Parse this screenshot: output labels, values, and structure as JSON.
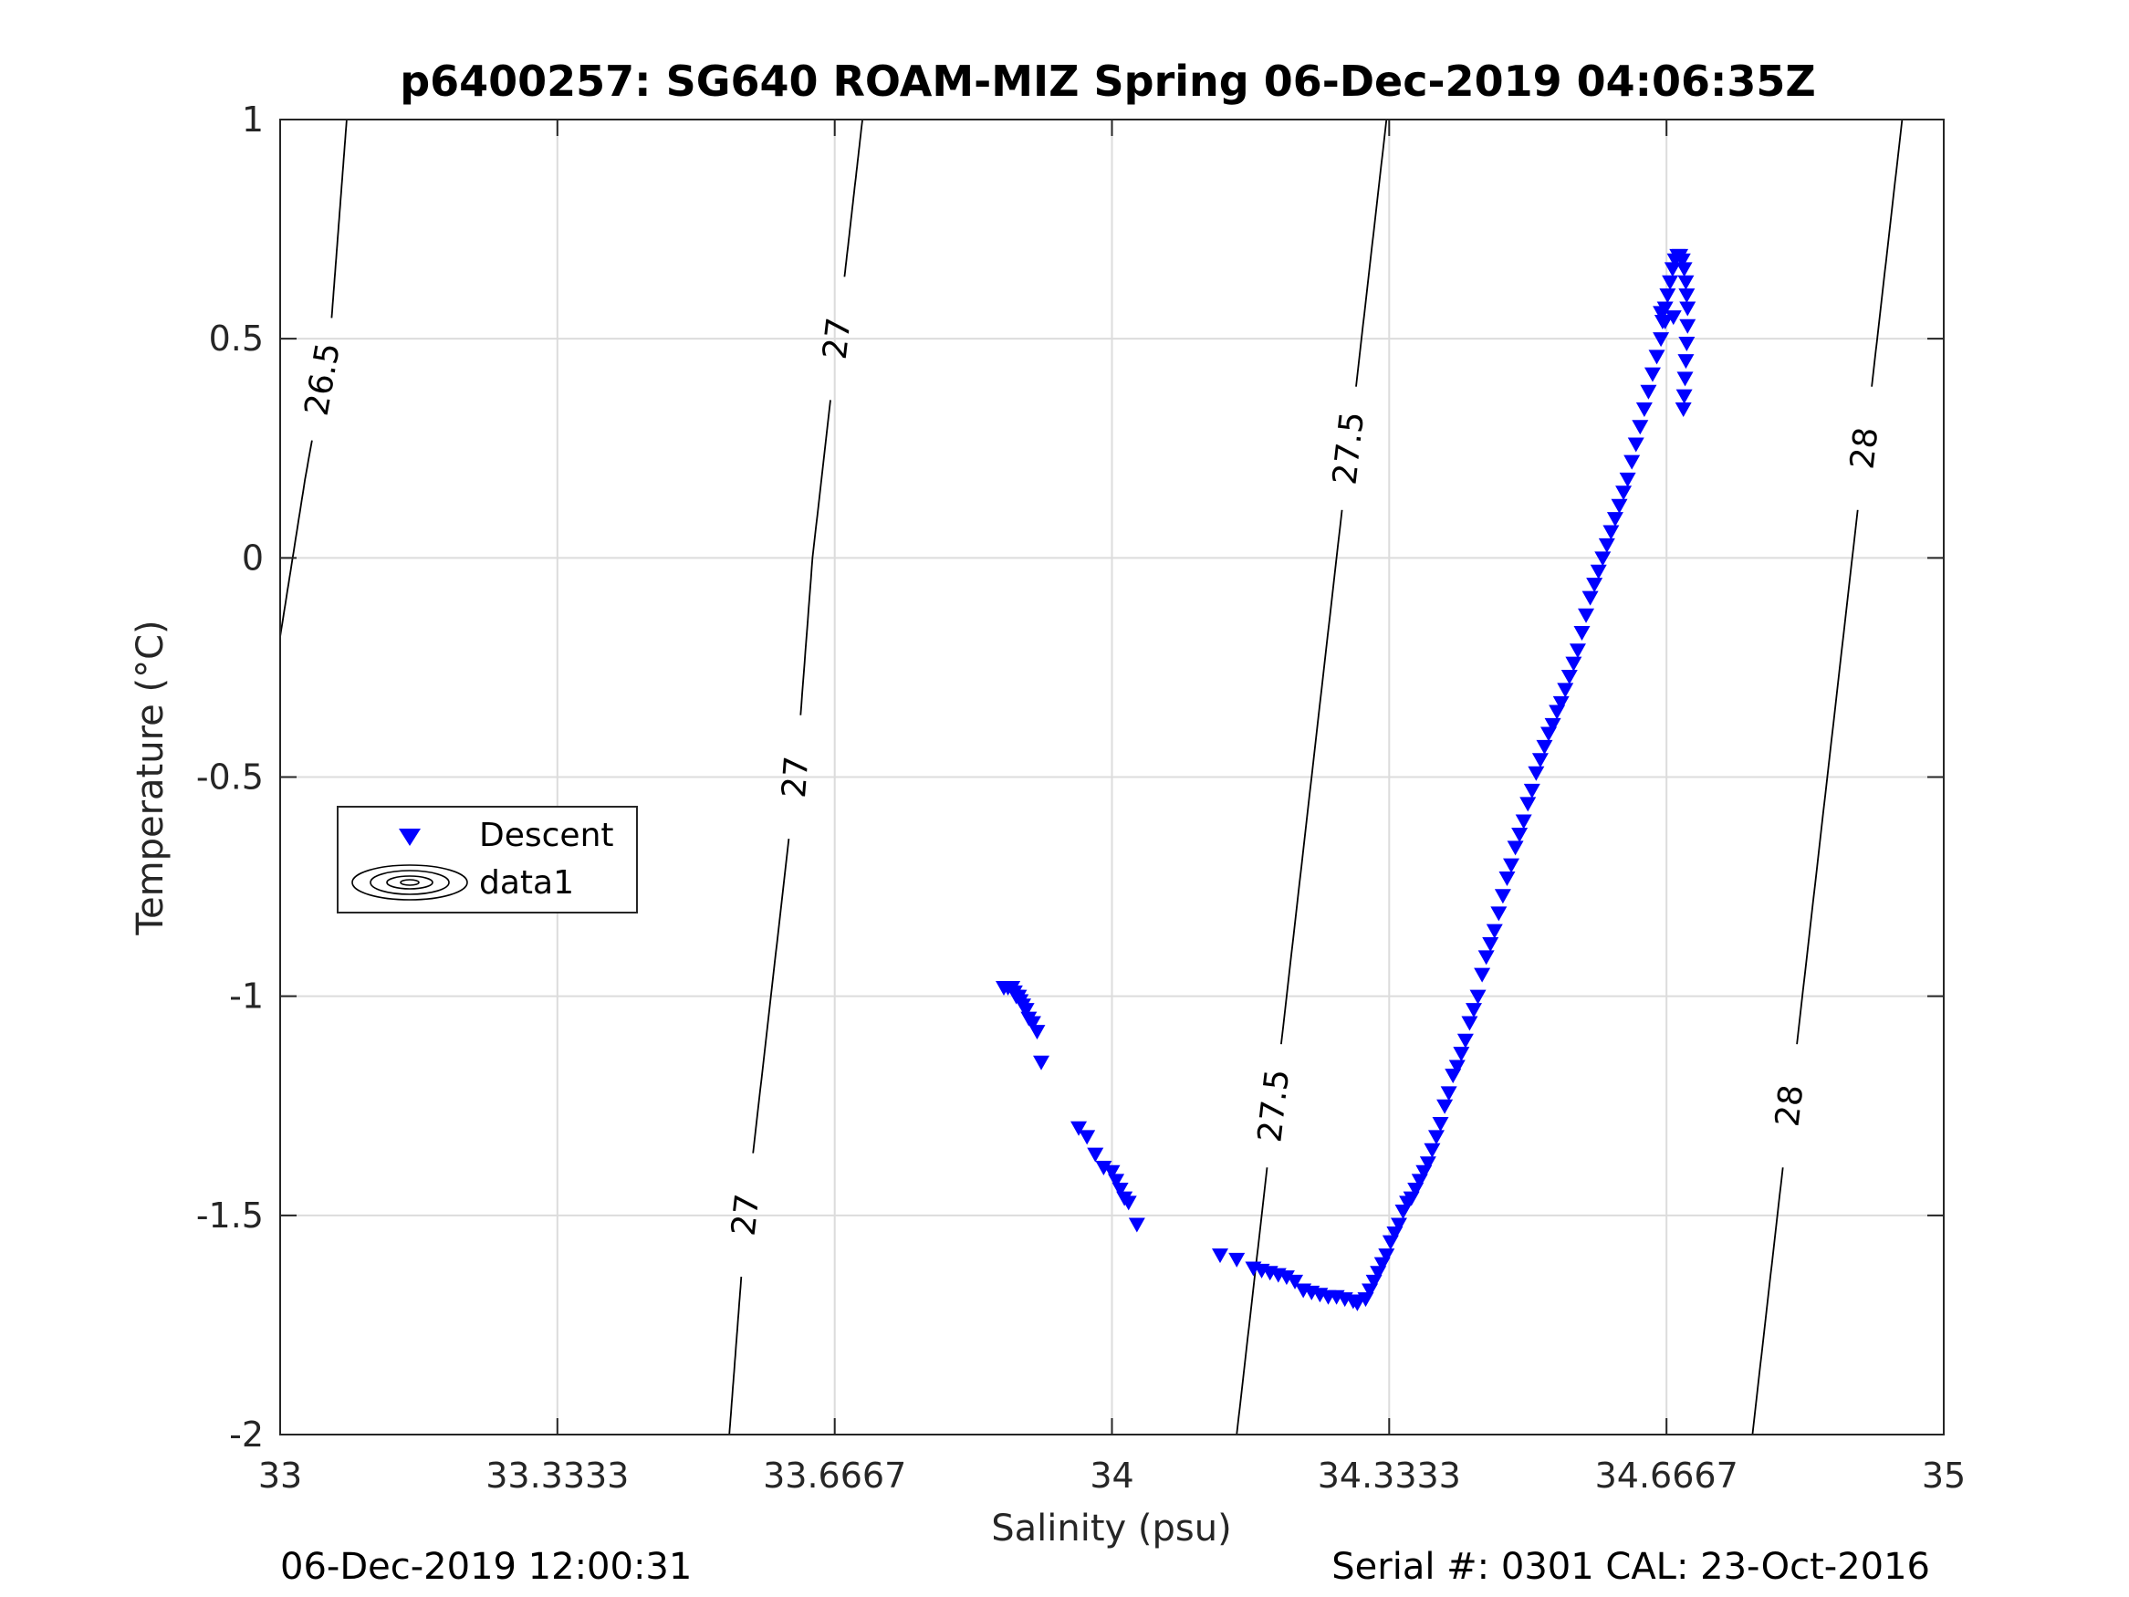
{
  "chart_data": {
    "type": "scatter",
    "title": "p6400257: SG640 ROAM-MIZ Spring 06-Dec-2019 04:06:35Z",
    "xlabel": "Salinity (psu)",
    "ylabel": "Temperature (°C)",
    "xlim": [
      33,
      35
    ],
    "ylim": [
      -2,
      1
    ],
    "x_ticks": [
      33,
      33.3333,
      33.6667,
      34,
      34.3333,
      34.6667,
      35
    ],
    "x_tick_labels": [
      "33",
      "33.3333",
      "33.6667",
      "34",
      "34.3333",
      "34.6667",
      "35"
    ],
    "y_ticks": [
      -2,
      -1.5,
      -1,
      -0.5,
      0,
      0.5,
      1
    ],
    "y_tick_labels": [
      "-2",
      "-1.5",
      "-1",
      "-0.5",
      "0",
      "0.5",
      "1"
    ],
    "grid": true,
    "legend": {
      "placement": "left",
      "entries": [
        {
          "label": "Descent",
          "marker": "down-triangle",
          "color": "#0000ff"
        },
        {
          "label": "data1",
          "marker": "contour",
          "color": "#000000"
        }
      ]
    },
    "contours": [
      {
        "level": "26.5",
        "labels": [
          "26.5"
        ],
        "points": [
          [
            33.0,
            -0.18
          ],
          [
            33.03,
            0.18
          ],
          [
            33.06,
            0.5
          ],
          [
            33.08,
            1.0
          ]
        ]
      },
      {
        "level": "27",
        "labels": [
          "27",
          "27",
          "27"
        ],
        "points": [
          [
            33.54,
            -2.0
          ],
          [
            33.56,
            -1.5
          ],
          [
            33.59,
            -1.0
          ],
          [
            33.62,
            -0.5
          ],
          [
            33.64,
            0.0
          ],
          [
            33.67,
            0.5
          ],
          [
            33.7,
            1.0
          ]
        ]
      },
      {
        "level": "27.5",
        "labels": [
          "27.5",
          "27.5"
        ],
        "points": [
          [
            34.15,
            -2.0
          ],
          [
            34.18,
            -1.5
          ],
          [
            34.21,
            -1.0
          ],
          [
            34.24,
            -0.5
          ],
          [
            34.27,
            0.0
          ],
          [
            34.3,
            0.5
          ],
          [
            34.33,
            1.0
          ]
        ]
      },
      {
        "level": "28",
        "labels": [
          "28",
          "28"
        ],
        "points": [
          [
            34.77,
            -2.0
          ],
          [
            34.8,
            -1.5
          ],
          [
            34.83,
            -1.0
          ],
          [
            34.86,
            -0.5
          ],
          [
            34.89,
            0.0
          ],
          [
            34.92,
            0.5
          ],
          [
            34.95,
            1.0
          ]
        ]
      }
    ],
    "series": [
      {
        "name": "Descent",
        "color": "#0000ff",
        "marker": "down-triangle",
        "points": [
          [
            33.87,
            -0.98
          ],
          [
            33.875,
            -0.98
          ],
          [
            33.88,
            -0.98
          ],
          [
            33.883,
            -0.99
          ],
          [
            33.885,
            -1.0
          ],
          [
            33.888,
            -1.0
          ],
          [
            33.89,
            -1.01
          ],
          [
            33.893,
            -1.02
          ],
          [
            33.897,
            -1.03
          ],
          [
            33.9,
            -1.05
          ],
          [
            33.905,
            -1.06
          ],
          [
            33.91,
            -1.08
          ],
          [
            33.915,
            -1.15
          ],
          [
            33.96,
            -1.3
          ],
          [
            33.97,
            -1.32
          ],
          [
            33.98,
            -1.36
          ],
          [
            33.99,
            -1.39
          ],
          [
            34.0,
            -1.4
          ],
          [
            34.005,
            -1.42
          ],
          [
            34.01,
            -1.44
          ],
          [
            34.015,
            -1.46
          ],
          [
            34.02,
            -1.47
          ],
          [
            34.03,
            -1.52
          ],
          [
            34.13,
            -1.59
          ],
          [
            34.15,
            -1.6
          ],
          [
            34.17,
            -1.62
          ],
          [
            34.18,
            -1.625
          ],
          [
            34.19,
            -1.63
          ],
          [
            34.2,
            -1.635
          ],
          [
            34.21,
            -1.64
          ],
          [
            34.22,
            -1.65
          ],
          [
            34.23,
            -1.67
          ],
          [
            34.24,
            -1.675
          ],
          [
            34.25,
            -1.68
          ],
          [
            34.26,
            -1.685
          ],
          [
            34.27,
            -1.685
          ],
          [
            34.28,
            -1.69
          ],
          [
            34.29,
            -1.695
          ],
          [
            34.295,
            -1.7
          ],
          [
            34.305,
            -1.69
          ],
          [
            34.31,
            -1.67
          ],
          [
            34.315,
            -1.65
          ],
          [
            34.32,
            -1.63
          ],
          [
            34.325,
            -1.61
          ],
          [
            34.33,
            -1.59
          ],
          [
            34.335,
            -1.56
          ],
          [
            34.34,
            -1.54
          ],
          [
            34.345,
            -1.52
          ],
          [
            34.35,
            -1.49
          ],
          [
            34.355,
            -1.47
          ],
          [
            34.36,
            -1.46
          ],
          [
            34.365,
            -1.44
          ],
          [
            34.37,
            -1.42
          ],
          [
            34.375,
            -1.4
          ],
          [
            34.38,
            -1.38
          ],
          [
            34.385,
            -1.35
          ],
          [
            34.39,
            -1.32
          ],
          [
            34.395,
            -1.29
          ],
          [
            34.4,
            -1.25
          ],
          [
            34.405,
            -1.22
          ],
          [
            34.41,
            -1.18
          ],
          [
            34.415,
            -1.16
          ],
          [
            34.42,
            -1.13
          ],
          [
            34.425,
            -1.1
          ],
          [
            34.43,
            -1.06
          ],
          [
            34.435,
            -1.03
          ],
          [
            34.44,
            -1.0
          ],
          [
            34.445,
            -0.95
          ],
          [
            34.45,
            -0.91
          ],
          [
            34.455,
            -0.88
          ],
          [
            34.46,
            -0.85
          ],
          [
            34.465,
            -0.81
          ],
          [
            34.47,
            -0.77
          ],
          [
            34.475,
            -0.73
          ],
          [
            34.48,
            -0.7
          ],
          [
            34.485,
            -0.66
          ],
          [
            34.49,
            -0.63
          ],
          [
            34.495,
            -0.6
          ],
          [
            34.5,
            -0.56
          ],
          [
            34.505,
            -0.53
          ],
          [
            34.51,
            -0.49
          ],
          [
            34.515,
            -0.46
          ],
          [
            34.52,
            -0.43
          ],
          [
            34.525,
            -0.4
          ],
          [
            34.53,
            -0.38
          ],
          [
            34.535,
            -0.35
          ],
          [
            34.54,
            -0.33
          ],
          [
            34.545,
            -0.3
          ],
          [
            34.55,
            -0.27
          ],
          [
            34.555,
            -0.24
          ],
          [
            34.56,
            -0.21
          ],
          [
            34.565,
            -0.17
          ],
          [
            34.57,
            -0.13
          ],
          [
            34.575,
            -0.09
          ],
          [
            34.58,
            -0.06
          ],
          [
            34.585,
            -0.03
          ],
          [
            34.59,
            0.0
          ],
          [
            34.595,
            0.03
          ],
          [
            34.6,
            0.06
          ],
          [
            34.605,
            0.09
          ],
          [
            34.61,
            0.12
          ],
          [
            34.615,
            0.15
          ],
          [
            34.62,
            0.18
          ],
          [
            34.625,
            0.22
          ],
          [
            34.63,
            0.26
          ],
          [
            34.635,
            0.3
          ],
          [
            34.64,
            0.34
          ],
          [
            34.645,
            0.38
          ],
          [
            34.65,
            0.42
          ],
          [
            34.655,
            0.46
          ],
          [
            34.66,
            0.5
          ],
          [
            34.662,
            0.54
          ],
          [
            34.665,
            0.57
          ],
          [
            34.668,
            0.6
          ],
          [
            34.671,
            0.63
          ],
          [
            34.674,
            0.66
          ],
          [
            34.677,
            0.68
          ],
          [
            34.68,
            0.69
          ],
          [
            34.683,
            0.69
          ],
          [
            34.686,
            0.68
          ],
          [
            34.688,
            0.66
          ],
          [
            34.69,
            0.63
          ],
          [
            34.691,
            0.6
          ],
          [
            34.692,
            0.57
          ],
          [
            34.692,
            0.53
          ],
          [
            34.691,
            0.49
          ],
          [
            34.69,
            0.45
          ],
          [
            34.689,
            0.41
          ],
          [
            34.688,
            0.37
          ],
          [
            34.687,
            0.34
          ],
          [
            34.675,
            0.55
          ],
          [
            34.665,
            0.54
          ],
          [
            34.66,
            0.56
          ]
        ]
      }
    ]
  },
  "footer": {
    "left": "06-Dec-2019 12:00:31",
    "right": "Serial #: 0301  CAL: 23-Oct-2016"
  }
}
